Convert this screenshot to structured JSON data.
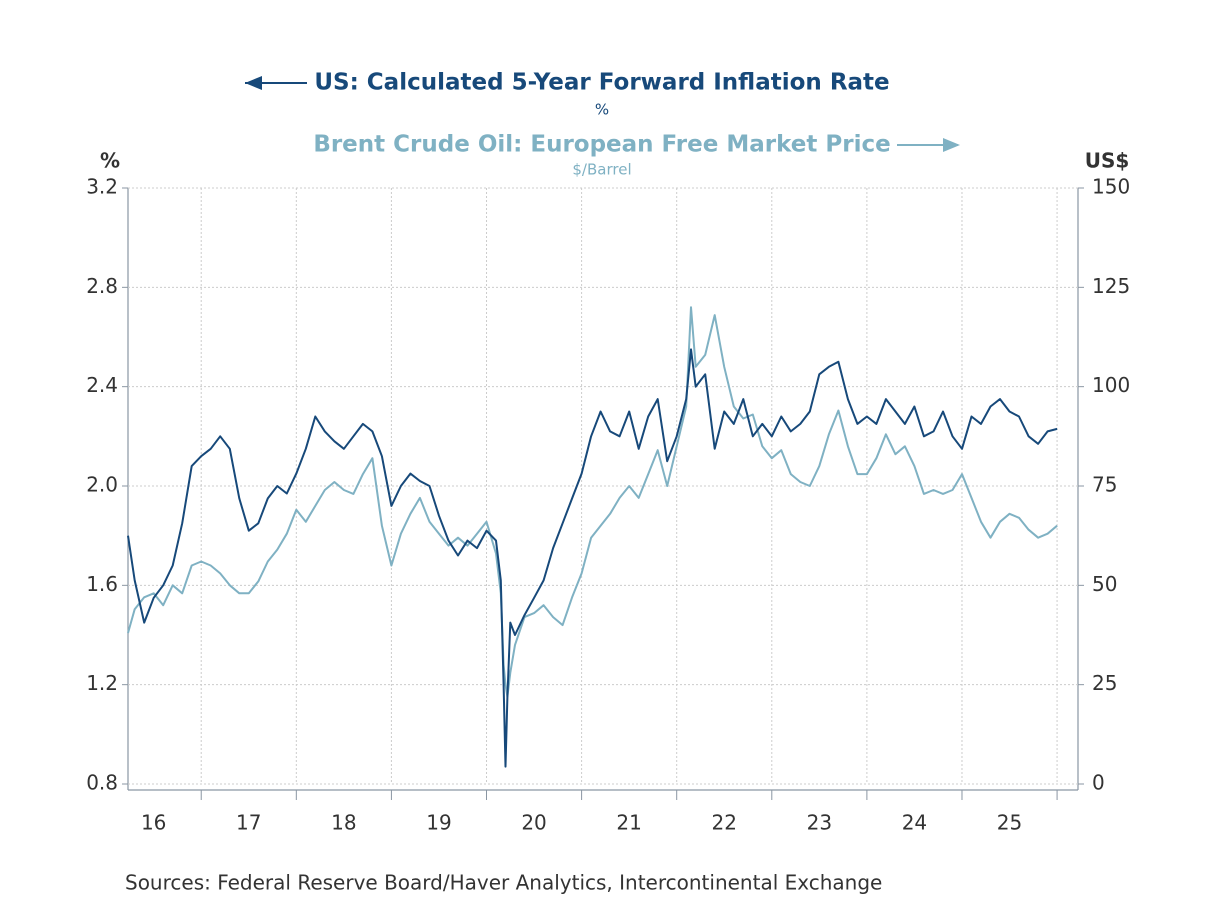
{
  "chart_data": {
    "type": "line",
    "source": "Sources:  Federal Reserve Board/Haver Analytics, Intercontinental Exchange",
    "ylabel": "%",
    "y2label": "US$",
    "x": [
      16.23,
      16.3,
      16.4,
      16.5,
      16.6,
      16.7,
      16.8,
      16.9,
      17.0,
      17.1,
      17.2,
      17.3,
      17.4,
      17.5,
      17.6,
      17.7,
      17.8,
      17.9,
      18.0,
      18.1,
      18.2,
      18.3,
      18.4,
      18.5,
      18.6,
      18.7,
      18.8,
      18.9,
      19.0,
      19.1,
      19.2,
      19.3,
      19.4,
      19.5,
      19.6,
      19.7,
      19.8,
      19.9,
      20.0,
      20.1,
      20.15,
      20.18,
      20.2,
      20.22,
      20.25,
      20.3,
      20.4,
      20.5,
      20.6,
      20.7,
      20.8,
      20.9,
      21.0,
      21.1,
      21.2,
      21.3,
      21.4,
      21.5,
      21.6,
      21.7,
      21.8,
      21.9,
      22.0,
      22.1,
      22.15,
      22.2,
      22.3,
      22.4,
      22.5,
      22.6,
      22.7,
      22.8,
      22.9,
      23.0,
      23.1,
      23.2,
      23.3,
      23.4,
      23.5,
      23.6,
      23.7,
      23.8,
      23.9,
      24.0,
      24.1,
      24.2,
      24.3,
      24.4,
      24.5,
      24.6,
      24.7,
      24.8,
      24.9,
      25.0,
      25.1,
      25.2,
      25.3,
      25.4,
      25.5,
      25.6,
      25.7,
      25.8,
      25.9,
      26.0
    ],
    "xlim": [
      16.23,
      26.22
    ],
    "xticks": [
      {
        "value": 16.5,
        "label": "16"
      },
      {
        "value": 17.5,
        "label": "17"
      },
      {
        "value": 18.5,
        "label": "18"
      },
      {
        "value": 19.5,
        "label": "19"
      },
      {
        "value": 20.5,
        "label": "20"
      },
      {
        "value": 21.5,
        "label": "21"
      },
      {
        "value": 22.5,
        "label": "22"
      },
      {
        "value": 23.5,
        "label": "23"
      },
      {
        "value": 24.5,
        "label": "24"
      },
      {
        "value": 25.5,
        "label": "25"
      }
    ],
    "xgrid": [
      17,
      18,
      19,
      20,
      21,
      22,
      23,
      24,
      25,
      26
    ],
    "ylim": [
      0.8,
      3.2
    ],
    "yticks": [
      0.8,
      1.2,
      1.6,
      {
        "value": 2,
        "label": "2.0"
      },
      2.4,
      2.8,
      3.2
    ],
    "y2lim": [
      0,
      150
    ],
    "y2ticks": [
      0,
      25,
      50,
      75,
      100,
      125,
      150
    ],
    "grid": true,
    "series": [
      {
        "name": "US: Calculated 5-Year Forward Inflation Rate",
        "unit": "%",
        "color": "#17497a",
        "values": [
          1.8,
          1.62,
          1.45,
          1.55,
          1.6,
          1.68,
          1.85,
          2.08,
          2.12,
          2.15,
          2.2,
          2.15,
          1.95,
          1.82,
          1.85,
          1.95,
          2.0,
          1.97,
          2.05,
          2.15,
          2.28,
          2.22,
          2.18,
          2.15,
          2.2,
          2.25,
          2.22,
          2.12,
          1.92,
          2.0,
          2.05,
          2.02,
          2.0,
          1.88,
          1.78,
          1.72,
          1.78,
          1.75,
          1.82,
          1.78,
          1.62,
          1.2,
          0.87,
          1.15,
          1.45,
          1.4,
          1.48,
          1.55,
          1.62,
          1.75,
          1.85,
          1.95,
          2.05,
          2.2,
          2.3,
          2.22,
          2.2,
          2.3,
          2.15,
          2.28,
          2.35,
          2.1,
          2.2,
          2.35,
          2.55,
          2.4,
          2.45,
          2.15,
          2.3,
          2.25,
          2.35,
          2.2,
          2.25,
          2.2,
          2.28,
          2.22,
          2.25,
          2.3,
          2.45,
          2.48,
          2.5,
          2.35,
          2.25,
          2.28,
          2.25,
          2.35,
          2.3,
          2.25,
          2.32,
          2.2,
          2.22,
          2.3,
          2.2,
          2.15,
          2.28,
          2.25,
          2.32,
          2.35,
          2.3,
          2.28,
          2.2,
          2.17,
          2.22,
          2.23
        ]
      },
      {
        "name": "Brent Crude Oil: European Free Market Price",
        "unit": "$/Barrel",
        "color": "#7fb1c3",
        "axis": "y2",
        "values": [
          38,
          44,
          47,
          48,
          45,
          50,
          48,
          55,
          56,
          55,
          53,
          50,
          48,
          48,
          51,
          56,
          59,
          63,
          69,
          66,
          70,
          74,
          76,
          74,
          73,
          78,
          82,
          65,
          55,
          63,
          68,
          72,
          66,
          63,
          60,
          62,
          60,
          63,
          66,
          58,
          48,
          30,
          25,
          22,
          28,
          35,
          42,
          43,
          45,
          42,
          40,
          47,
          53,
          62,
          65,
          68,
          72,
          75,
          72,
          78,
          84,
          75,
          85,
          95,
          120,
          105,
          108,
          118,
          105,
          95,
          92,
          93,
          85,
          82,
          84,
          78,
          76,
          75,
          80,
          88,
          94,
          85,
          78,
          78,
          82,
          88,
          83,
          85,
          80,
          73,
          74,
          73,
          74,
          78,
          72,
          66,
          62,
          66,
          68,
          67,
          64,
          62,
          63,
          65
        ]
      }
    ]
  }
}
